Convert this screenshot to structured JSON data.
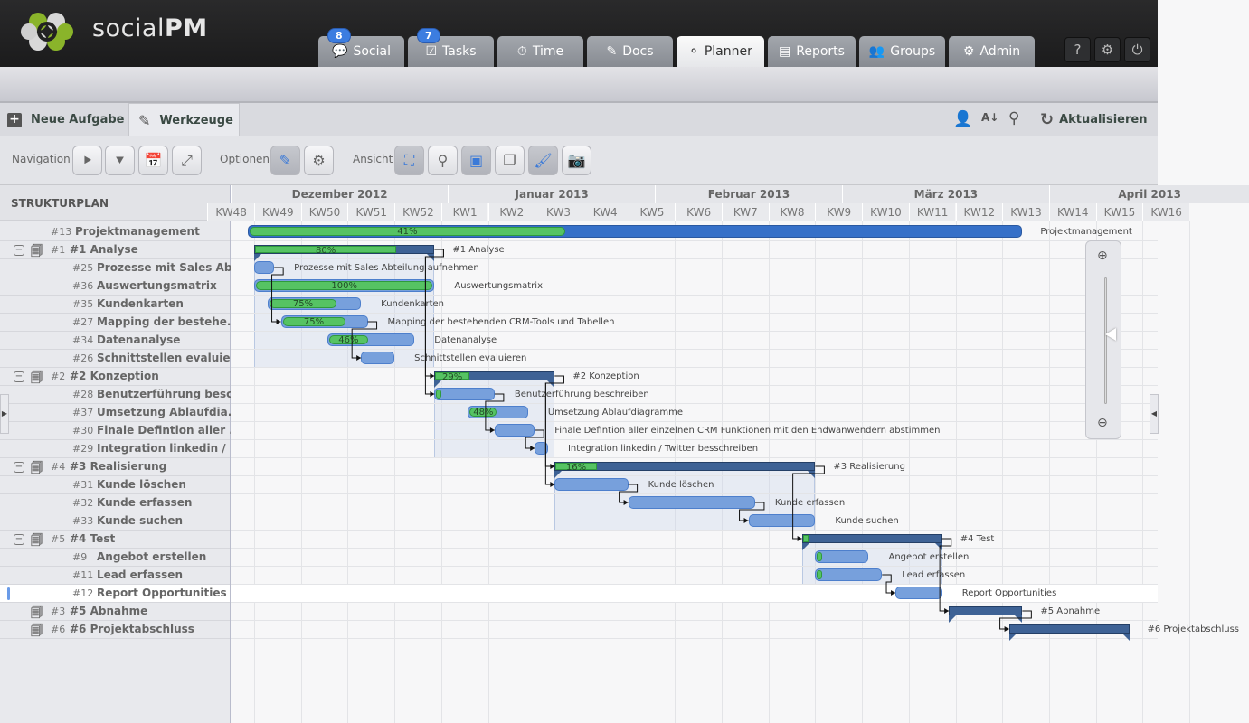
{
  "app": {
    "brand_light": "social",
    "brand_bold": "PM"
  },
  "nav": [
    {
      "label": "Social",
      "icon": "speech-bubble-icon",
      "badge": "8"
    },
    {
      "label": "Tasks",
      "icon": "checkbox-icon",
      "badge": "7"
    },
    {
      "label": "Time",
      "icon": "stopwatch-icon"
    },
    {
      "label": "Docs",
      "icon": "edit-icon"
    },
    {
      "label": "Planner",
      "icon": "nodes-icon",
      "active": true
    },
    {
      "label": "Reports",
      "icon": "presentation-icon"
    },
    {
      "label": "Groups",
      "icon": "users-icon"
    },
    {
      "label": "Admin",
      "icon": "gear-icon"
    }
  ],
  "top_buttons": [
    {
      "name": "help",
      "glyph": "?"
    },
    {
      "name": "settings",
      "glyph": "⚙"
    },
    {
      "name": "power",
      "glyph": "⏻"
    }
  ],
  "toolbar": {
    "new_task": "Neue Aufgabe",
    "tools": "Werkzeuge",
    "refresh": "Aktualisieren"
  },
  "options": {
    "navigation": "Navigation",
    "optionen": "Optionen",
    "ansicht": "Ansicht"
  },
  "colors": {
    "accent": "#3c7de0",
    "task_bar": "#77a0dc",
    "progress": "#56c363",
    "summary_bar": "#3e6295",
    "project_bar": "#3670c8"
  },
  "gantt": {
    "left_header": "STRUKTURPLAN",
    "months": [
      "Dezember 2012",
      "Januar 2013",
      "Februar 2013",
      "März 2013",
      "April 2013"
    ],
    "weeks": [
      "KW48",
      "KW49",
      "KW50",
      "KW51",
      "KW52",
      "KW1",
      "KW2",
      "KW3",
      "KW4",
      "KW5",
      "KW6",
      "KW7",
      "KW8",
      "KW9",
      "KW10",
      "KW11",
      "KW12",
      "KW13",
      "KW14",
      "KW15",
      "KW16"
    ],
    "rows": [
      {
        "id": "#13",
        "name": "Projektmanagement",
        "label": "Projektmanagement",
        "type": "project",
        "start": "2012-12-02",
        "end": "2013-03-28",
        "progress": 41
      },
      {
        "id": "#1",
        "name": "#1 Analyse",
        "label": "#1 Analyse",
        "type": "summary",
        "start": "2012-12-03",
        "end": "2012-12-30",
        "progress": 80
      },
      {
        "id": "#25",
        "name": "Prozesse mit Sales Abt...",
        "label": "Prozesse mit Sales Abteilung aufnehmen",
        "type": "task",
        "start": "2012-12-03",
        "end": "2012-12-06",
        "progress": 0
      },
      {
        "id": "#36",
        "name": "Auswertungsmatrix",
        "label": "Auswertungsmatrix",
        "type": "task",
        "start": "2012-12-03",
        "end": "2012-12-30",
        "progress": 100
      },
      {
        "id": "#35",
        "name": "Kundenkarten",
        "label": "Kundenkarten",
        "type": "task",
        "start": "2012-12-05",
        "end": "2012-12-19",
        "progress": 75
      },
      {
        "id": "#27",
        "name": "Mapping der bestehe...",
        "label": "Mapping der bestehenden CRM-Tools und Tabellen",
        "type": "task",
        "start": "2012-12-07",
        "end": "2012-12-20",
        "progress": 75
      },
      {
        "id": "#34",
        "name": "Datenanalyse",
        "label": "Datenanalyse",
        "type": "task",
        "start": "2012-12-14",
        "end": "2012-12-27",
        "progress": 46
      },
      {
        "id": "#26",
        "name": "Schnittstellen evaluier...",
        "label": "Schnittstellen evaluieren",
        "type": "task",
        "start": "2012-12-19",
        "end": "2012-12-24",
        "progress": 0
      },
      {
        "id": "#2",
        "name": "#2 Konzeption",
        "label": "#2 Konzeption",
        "type": "summary",
        "start": "2012-12-30",
        "end": "2013-01-17",
        "progress": 29
      },
      {
        "id": "#28",
        "name": "Benutzerführung besc...",
        "label": "Benutzerführung beschreiben",
        "type": "task",
        "start": "2012-12-30",
        "end": "2013-01-08",
        "progress": 3
      },
      {
        "id": "#37",
        "name": "Umsetzung Ablaufdia...",
        "label": "Umsetzung Ablaufdiagramme",
        "type": "task",
        "start": "2013-01-04",
        "end": "2013-01-13",
        "progress": 48
      },
      {
        "id": "#30",
        "name": "Finale Defintion aller ...",
        "label": "Finale Defintion aller einzelnen CRM Funktionen mit den Endwanwendern abstimmen",
        "type": "task",
        "start": "2013-01-08",
        "end": "2013-01-14",
        "progress": 0
      },
      {
        "id": "#29",
        "name": "Integration linkedin / ...",
        "label": "Integration linkedin / Twitter besschreiben",
        "type": "task",
        "start": "2013-01-14",
        "end": "2013-01-16",
        "progress": 0
      },
      {
        "id": "#4",
        "name": "#3 Realisierung",
        "label": "#3 Realisierung",
        "type": "summary",
        "start": "2013-01-17",
        "end": "2013-02-25",
        "progress": 16
      },
      {
        "id": "#31",
        "name": "Kunde löschen",
        "label": "Kunde löschen",
        "type": "task",
        "start": "2013-01-17",
        "end": "2013-01-28",
        "progress": 0
      },
      {
        "id": "#32",
        "name": "Kunde erfassen",
        "label": "Kunde erfassen",
        "type": "task",
        "start": "2013-01-28",
        "end": "2013-02-16",
        "progress": 0
      },
      {
        "id": "#33",
        "name": "Kunde suchen",
        "label": "Kunde suchen",
        "type": "task",
        "start": "2013-02-15",
        "end": "2013-02-25",
        "progress": 0
      },
      {
        "id": "#5",
        "name": "#4 Test",
        "label": "#4 Test",
        "type": "summary",
        "start": "2013-02-23",
        "end": "2013-03-16",
        "progress": 2
      },
      {
        "id": "#9",
        "name": "Angebot erstellen",
        "label": "Angebot erstellen",
        "type": "task",
        "start": "2013-02-25",
        "end": "2013-03-05",
        "progress": 3
      },
      {
        "id": "#11",
        "name": "Lead erfassen",
        "label": "Lead erfassen",
        "type": "task",
        "start": "2013-02-25",
        "end": "2013-03-07",
        "progress": 1
      },
      {
        "id": "#12",
        "name": "Report Opportunities",
        "label": "Report Opportunities",
        "type": "task",
        "start": "2013-03-09",
        "end": "2013-03-16",
        "progress": 0,
        "selected": true
      },
      {
        "id": "#3",
        "name": "#5 Abnahme",
        "label": "#5 Abnahme",
        "type": "summary",
        "start": "2013-03-17",
        "end": "2013-03-28",
        "progress": 0,
        "collapsed": true
      },
      {
        "id": "#6",
        "name": "#6 Projektabschluss",
        "label": "#6 Projektabschluss",
        "type": "summary",
        "start": "2013-03-26",
        "end": "2013-04-13",
        "progress": 0,
        "collapsed": true
      }
    ],
    "dependencies": [
      [
        "#25",
        "#27"
      ],
      [
        "#1",
        "#2"
      ],
      [
        "#27",
        "#26"
      ],
      [
        "#1",
        "#28"
      ],
      [
        "#28",
        "#30"
      ],
      [
        "#30",
        "#29"
      ],
      [
        "#2",
        "#4"
      ],
      [
        "#2",
        "#31"
      ],
      [
        "#31",
        "#32"
      ],
      [
        "#32",
        "#33"
      ],
      [
        "#4",
        "#5"
      ],
      [
        "#11",
        "#12"
      ],
      [
        "#5",
        "#3"
      ],
      [
        "#3",
        "#6"
      ]
    ]
  }
}
